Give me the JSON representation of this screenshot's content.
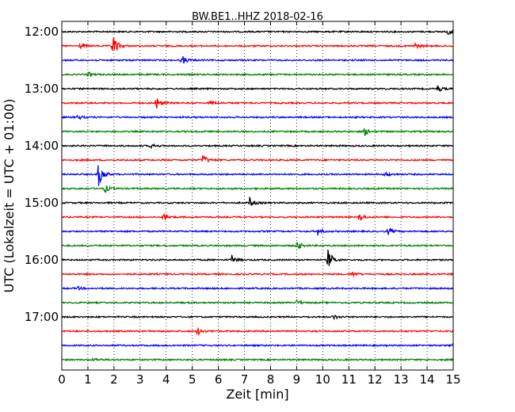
{
  "chart_data": {
    "type": "line",
    "title": "BW.BE1..HHZ 2018-02-16",
    "xlabel": "Zeit  [min]",
    "ylabel": "UTC (Lokalzeit = UTC + 01:00)",
    "xlim": [
      0,
      15
    ],
    "x_ticks": [
      "0",
      "1",
      "2",
      "3",
      "4",
      "5",
      "6",
      "7",
      "8",
      "9",
      "10",
      "11",
      "12",
      "13",
      "14",
      "15"
    ],
    "y_ticks": [
      "12:00",
      "13:00",
      "14:00",
      "15:00",
      "16:00",
      "17:00"
    ],
    "trace_colors": [
      "#000000",
      "#ff0000",
      "#0000ff",
      "#008000"
    ],
    "grid": "vertical dotted lines at each minute",
    "traces": [
      {
        "start": "12:00",
        "events": [
          {
            "t": 14.8,
            "amp": 4
          }
        ]
      },
      {
        "start": "12:15",
        "events": [
          {
            "t": 1.95,
            "amp": 16
          },
          {
            "t": 0.7,
            "amp": 3
          },
          {
            "t": 13.5,
            "amp": 4
          }
        ]
      },
      {
        "start": "12:30",
        "events": [
          {
            "t": 4.6,
            "amp": 6
          }
        ]
      },
      {
        "start": "12:45",
        "events": [
          {
            "t": 1.0,
            "amp": 3
          }
        ]
      },
      {
        "start": "13:00",
        "events": [
          {
            "t": 14.4,
            "amp": 4
          }
        ]
      },
      {
        "start": "13:15",
        "events": [
          {
            "t": 3.6,
            "amp": 9
          },
          {
            "t": 5.7,
            "amp": 3
          }
        ]
      },
      {
        "start": "13:30",
        "events": [
          {
            "t": 0.6,
            "amp": 3
          }
        ]
      },
      {
        "start": "13:45",
        "events": [
          {
            "t": 11.6,
            "amp": 5
          }
        ]
      },
      {
        "start": "14:00",
        "events": [
          {
            "t": 3.4,
            "amp": 3
          }
        ]
      },
      {
        "start": "14:15",
        "events": [
          {
            "t": 5.4,
            "amp": 7
          }
        ]
      },
      {
        "start": "14:30",
        "events": [
          {
            "t": 1.4,
            "amp": 16
          },
          {
            "t": 12.4,
            "amp": 3
          }
        ]
      },
      {
        "start": "14:45",
        "events": [
          {
            "t": 1.65,
            "amp": 5
          }
        ]
      },
      {
        "start": "15:00",
        "events": [
          {
            "t": 7.2,
            "amp": 6
          }
        ]
      },
      {
        "start": "15:15",
        "events": [
          {
            "t": 3.9,
            "amp": 6
          },
          {
            "t": 11.4,
            "amp": 6
          }
        ]
      },
      {
        "start": "15:30",
        "events": [
          {
            "t": 9.8,
            "amp": 5
          },
          {
            "t": 12.5,
            "amp": 4
          }
        ]
      },
      {
        "start": "15:45",
        "events": [
          {
            "t": 9.0,
            "amp": 6
          }
        ]
      },
      {
        "start": "16:00",
        "events": [
          {
            "t": 6.5,
            "amp": 6
          },
          {
            "t": 10.2,
            "amp": 13
          }
        ]
      },
      {
        "start": "16:15",
        "events": [
          {
            "t": 11.1,
            "amp": 4
          }
        ]
      },
      {
        "start": "16:30",
        "events": [
          {
            "t": 0.6,
            "amp": 2
          }
        ]
      },
      {
        "start": "16:45",
        "events": [
          {
            "t": 9.0,
            "amp": 3
          }
        ]
      },
      {
        "start": "17:00",
        "events": [
          {
            "t": 10.4,
            "amp": 3
          }
        ]
      },
      {
        "start": "17:15",
        "events": [
          {
            "t": 5.2,
            "amp": 5
          }
        ]
      },
      {
        "start": "17:30",
        "events": [
          {
            "t": 15.0,
            "amp": 4
          }
        ]
      },
      {
        "start": "17:45",
        "events": [
          {
            "t": 1.2,
            "amp": 2
          }
        ]
      }
    ]
  }
}
